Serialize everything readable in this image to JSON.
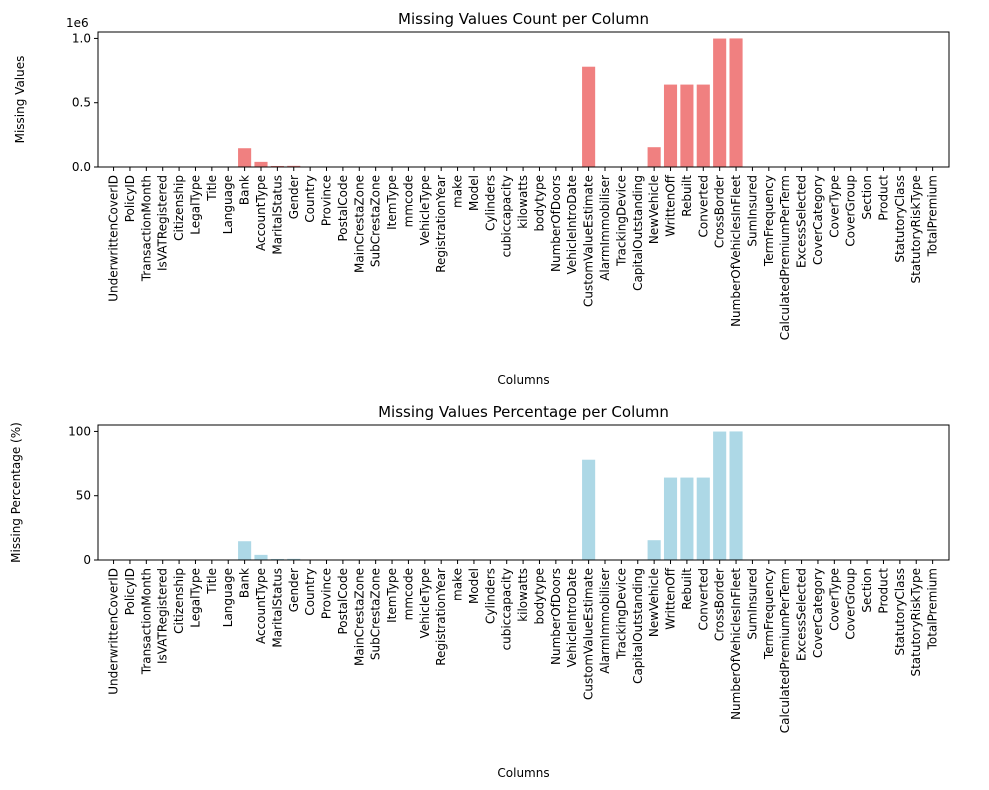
{
  "chart_data": [
    {
      "type": "bar",
      "title": "Missing Values Count per Column",
      "xlabel": "Columns",
      "ylabel": "Missing Values",
      "offset_label": "1e6",
      "ylim": [
        0,
        1.05
      ],
      "yticks": [
        "0.0",
        "0.5",
        "1.0"
      ],
      "ytick_values": [
        0.0,
        0.5,
        1.0
      ],
      "color": "#f08080",
      "categories": [
        "UnderwrittenCoverID",
        "PolicyID",
        "TransactionMonth",
        "IsVATRegistered",
        "Citizenship",
        "LegalType",
        "Title",
        "Language",
        "Bank",
        "AccountType",
        "MaritalStatus",
        "Gender",
        "Country",
        "Province",
        "PostalCode",
        "MainCrestaZone",
        "SubCrestaZone",
        "ItemType",
        "mmcode",
        "VehicleType",
        "RegistrationYear",
        "make",
        "Model",
        "Cylinders",
        "cubiccapacity",
        "kilowatts",
        "bodytype",
        "NumberOfDoors",
        "VehicleIntroDate",
        "CustomValueEstimate",
        "AlarmImmobiliser",
        "TrackingDevice",
        "CapitalOutstanding",
        "NewVehicle",
        "WrittenOff",
        "Rebuilt",
        "Converted",
        "CrossBorder",
        "NumberOfVehiclesInFleet",
        "SumInsured",
        "TermFrequency",
        "CalculatedPremiumPerTerm",
        "ExcessSelected",
        "CoverCategory",
        "CoverType",
        "CoverGroup",
        "Section",
        "Product",
        "StatutoryClass",
        "StatutoryRiskType",
        "TotalPremium"
      ],
      "values": [
        0,
        0,
        0,
        0,
        0,
        0,
        0,
        0,
        0.146,
        0.04,
        0.008,
        0.009,
        0,
        0,
        0,
        0,
        0,
        0,
        0.0005,
        0.0005,
        0,
        0.0005,
        0.0005,
        0.0005,
        0.0005,
        0.0005,
        0.0005,
        0.0005,
        0,
        0.78,
        0,
        0,
        2e-05,
        0.154,
        0.641,
        0.641,
        0.641,
        0.999,
        1.0,
        0,
        0,
        0,
        0,
        0,
        0,
        0,
        0,
        0,
        0,
        0,
        0
      ]
    },
    {
      "type": "bar",
      "title": "Missing Values Percentage per Column",
      "xlabel": "Columns",
      "ylabel": "Missing Percentage (%)",
      "ylim": [
        0,
        105
      ],
      "yticks": [
        "0",
        "50",
        "100"
      ],
      "ytick_values": [
        0,
        50,
        100
      ],
      "color": "#add8e6",
      "categories": [
        "UnderwrittenCoverID",
        "PolicyID",
        "TransactionMonth",
        "IsVATRegistered",
        "Citizenship",
        "LegalType",
        "Title",
        "Language",
        "Bank",
        "AccountType",
        "MaritalStatus",
        "Gender",
        "Country",
        "Province",
        "PostalCode",
        "MainCrestaZone",
        "SubCrestaZone",
        "ItemType",
        "mmcode",
        "VehicleType",
        "RegistrationYear",
        "make",
        "Model",
        "Cylinders",
        "cubiccapacity",
        "kilowatts",
        "bodytype",
        "NumberOfDoors",
        "VehicleIntroDate",
        "CustomValueEstimate",
        "AlarmImmobiliser",
        "TrackingDevice",
        "CapitalOutstanding",
        "NewVehicle",
        "WrittenOff",
        "Rebuilt",
        "Converted",
        "CrossBorder",
        "NumberOfVehiclesInFleet",
        "SumInsured",
        "TermFrequency",
        "CalculatedPremiumPerTerm",
        "ExcessSelected",
        "CoverCategory",
        "CoverType",
        "CoverGroup",
        "Section",
        "Product",
        "StatutoryClass",
        "StatutoryRiskType",
        "TotalPremium"
      ],
      "values": [
        0,
        0,
        0,
        0,
        0,
        0,
        0,
        0,
        14.6,
        4.0,
        0.8,
        0.9,
        0,
        0,
        0,
        0,
        0,
        0,
        0.05,
        0.05,
        0,
        0.05,
        0.05,
        0.05,
        0.05,
        0.05,
        0.05,
        0.05,
        0,
        78.0,
        0,
        0,
        0.002,
        15.4,
        64.1,
        64.1,
        64.1,
        99.9,
        100.0,
        0,
        0,
        0,
        0,
        0,
        0,
        0,
        0,
        0,
        0,
        0,
        0
      ]
    }
  ]
}
